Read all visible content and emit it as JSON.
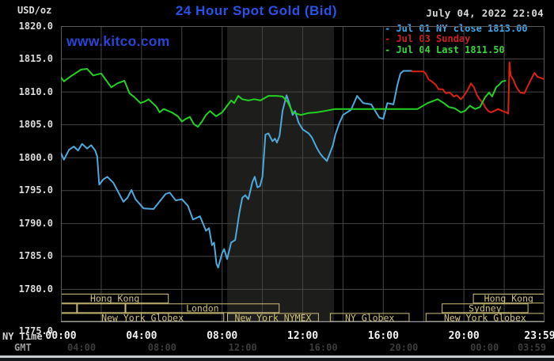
{
  "header": {
    "unit_label": "USD/oz",
    "title": "24 Hour Spot Gold (Bid)",
    "datetime": "July 04, 2022 22:04",
    "watermark": "www.kitco.com"
  },
  "theme": {
    "title_color": "#2a52e8",
    "watermark_color": "#2b44d4",
    "datetime_color": "#d8d8d8",
    "axis_label_color": "#dcdcdc",
    "ny_tick_color": "#f2f2f2",
    "ny_time_label_color": "#d5d5d5",
    "gmt_label_color": "#9c9c9c",
    "gmt_tick_color": "#3c3c3c",
    "grid_color": "#454545",
    "plot_border_color": "#5a5a5a",
    "plot_bottom_line_color": "#999999",
    "band_color": "#1d1d1b",
    "session_color": "#cfc17a",
    "blue": "#4fa8dc",
    "red": "#dc2014",
    "green": "#22d122"
  },
  "legend": [
    {
      "label": "- Jul 01 NY close 1813.00",
      "color": "#41a6e8"
    },
    {
      "label": "- Jul 03 Sunday",
      "color": "#cc2020"
    },
    {
      "label": "- Jul 04 Last 1811.50",
      "color": "#3ad43a"
    }
  ],
  "axes": {
    "y_ticks": [
      "1820.0",
      "1815.0",
      "1810.0",
      "1805.0",
      "1800.0",
      "1795.0",
      "1790.0",
      "1785.0",
      "1780.0",
      "1775.0"
    ],
    "x_ny_label": "NY Time",
    "x_gmt_label": "GMT",
    "x_ny_ticks": [
      "00:00",
      "04:00",
      "08:00",
      "12:00",
      "16:00",
      "20:00",
      "23:59"
    ],
    "x_gmt_ticks": [
      "04:00",
      "08:00",
      "12:00",
      "16:00",
      "20:00",
      "00:00",
      "03:59"
    ]
  },
  "sessions": {
    "rows": [
      [
        {
          "label": "Hong Kong",
          "start": 0,
          "end": 5.35
        },
        {
          "label": "Hong Kong",
          "start": 20.45,
          "end": 24
        }
      ],
      [
        {
          "label": "",
          "start": 0,
          "end": 0.8
        },
        {
          "label": "",
          "start": 0.8,
          "end": 3.2
        },
        {
          "label": "London",
          "start": 3.2,
          "end": 10.85
        },
        {
          "label": "Sydney",
          "start": 18.9,
          "end": 23.2
        }
      ],
      [
        {
          "label": "New York Globex",
          "start": 0,
          "end": 8.1
        },
        {
          "label": "New York NYMEX",
          "start": 8.25,
          "end": 12.8
        },
        {
          "label": "NY Globex",
          "start": 13.35,
          "end": 17.3
        },
        {
          "label": "New York Globex",
          "start": 18.1,
          "end": 24
        }
      ]
    ]
  },
  "chart_data": {
    "type": "line",
    "title": "24 Hour Spot Gold (Bid)",
    "x_unit": "hours, NY Time (00:00 - 23:59)",
    "y_unit": "USD/oz",
    "x_range": [
      0,
      24
    ],
    "y_range": [
      1775,
      1820
    ],
    "y_tick_step": 5,
    "x_tick_step_hours": 2,
    "grid": true,
    "legend_position": "top-right",
    "nymex_band_hours": [
      8.25,
      13.55
    ],
    "series": [
      {
        "name": "Jul 01 NY close 1813.00",
        "color": "#4fa8dc",
        "points": [
          [
            0,
            1800.7
          ],
          [
            0.15,
            1799.7
          ],
          [
            0.4,
            1801.2
          ],
          [
            0.65,
            1801.7
          ],
          [
            0.85,
            1801.1
          ],
          [
            1.05,
            1802.1
          ],
          [
            1.3,
            1801.4
          ],
          [
            1.5,
            1801.9
          ],
          [
            1.7,
            1801.1
          ],
          [
            1.8,
            1800.2
          ],
          [
            1.9,
            1795.9
          ],
          [
            2.1,
            1796.7
          ],
          [
            2.3,
            1797.1
          ],
          [
            2.6,
            1796.2
          ],
          [
            3.1,
            1793.3
          ],
          [
            3.3,
            1793.9
          ],
          [
            3.5,
            1795.1
          ],
          [
            3.7,
            1793.7
          ],
          [
            4.1,
            1792.3
          ],
          [
            4.6,
            1792.2
          ],
          [
            5.2,
            1794.5
          ],
          [
            5.4,
            1794.7
          ],
          [
            5.7,
            1793.5
          ],
          [
            6,
            1793.7
          ],
          [
            6.3,
            1792.7
          ],
          [
            6.55,
            1790.6
          ],
          [
            6.9,
            1791.1
          ],
          [
            7.2,
            1788.9
          ],
          [
            7.35,
            1789.3
          ],
          [
            7.5,
            1786.7
          ],
          [
            7.6,
            1787.1
          ],
          [
            7.72,
            1783.9
          ],
          [
            7.8,
            1783.3
          ],
          [
            8,
            1785.5
          ],
          [
            8.1,
            1786.1
          ],
          [
            8.25,
            1784.6
          ],
          [
            8.45,
            1787.1
          ],
          [
            8.65,
            1787.5
          ],
          [
            8.85,
            1791.5
          ],
          [
            9,
            1793.9
          ],
          [
            9.15,
            1794.3
          ],
          [
            9.3,
            1793.7
          ],
          [
            9.5,
            1796.3
          ],
          [
            9.62,
            1797.1
          ],
          [
            9.75,
            1795.5
          ],
          [
            9.88,
            1795.7
          ],
          [
            10,
            1797.1
          ],
          [
            10.15,
            1803.5
          ],
          [
            10.3,
            1803.7
          ],
          [
            10.5,
            1802.5
          ],
          [
            10.62,
            1802.9
          ],
          [
            10.72,
            1802.3
          ],
          [
            10.85,
            1803.3
          ],
          [
            11,
            1807.1
          ],
          [
            11.2,
            1809.5
          ],
          [
            11.35,
            1808.1
          ],
          [
            11.5,
            1806.5
          ],
          [
            11.62,
            1807.1
          ],
          [
            11.8,
            1805.3
          ],
          [
            12,
            1804.3
          ],
          [
            12.3,
            1803.7
          ],
          [
            12.45,
            1803.1
          ],
          [
            12.7,
            1801.5
          ],
          [
            12.85,
            1800.7
          ],
          [
            13,
            1800.1
          ],
          [
            13.2,
            1799.5
          ],
          [
            13.5,
            1801.9
          ],
          [
            13.62,
            1803.5
          ],
          [
            13.8,
            1805.1
          ],
          [
            14,
            1806.5
          ],
          [
            14.4,
            1807.3
          ],
          [
            14.7,
            1809.4
          ],
          [
            15,
            1808.3
          ],
          [
            15.4,
            1808.1
          ],
          [
            15.8,
            1806.1
          ],
          [
            16,
            1805.9
          ],
          [
            16.2,
            1808.3
          ],
          [
            16.5,
            1808.1
          ],
          [
            16.7,
            1811.1
          ],
          [
            16.85,
            1812.8
          ],
          [
            17,
            1813.2
          ],
          [
            17.4,
            1813.2
          ]
        ]
      },
      {
        "name": "Jul 03 Sunday",
        "color": "#dc2014",
        "points": [
          [
            17.4,
            1813.1
          ],
          [
            18,
            1813.1
          ],
          [
            18.1,
            1812.8
          ],
          [
            18.25,
            1811.9
          ],
          [
            18.4,
            1811.6
          ],
          [
            18.6,
            1811.1
          ],
          [
            18.75,
            1810.4
          ],
          [
            18.95,
            1810.4
          ],
          [
            19.1,
            1809.8
          ],
          [
            19.3,
            1809.9
          ],
          [
            19.5,
            1809.3
          ],
          [
            19.65,
            1809.5
          ],
          [
            19.85,
            1808.9
          ],
          [
            19.95,
            1809.2
          ],
          [
            20.15,
            1810.1
          ],
          [
            20.35,
            1811.3
          ],
          [
            20.5,
            1810.7
          ],
          [
            20.65,
            1809.5
          ],
          [
            20.78,
            1808.9
          ],
          [
            20.95,
            1808.3
          ],
          [
            21.05,
            1807.7
          ],
          [
            21.2,
            1807.1
          ],
          [
            21.35,
            1806.9
          ],
          [
            21.5,
            1807.1
          ],
          [
            21.7,
            1807.4
          ],
          [
            21.9,
            1807.1
          ],
          [
            22.1,
            1806.9
          ],
          [
            22.2,
            1806.7
          ],
          [
            22.26,
            1814.5
          ],
          [
            22.32,
            1812.5
          ],
          [
            22.45,
            1811.9
          ],
          [
            22.55,
            1811.1
          ],
          [
            22.65,
            1810.5
          ],
          [
            22.8,
            1809.9
          ],
          [
            23,
            1809.8
          ],
          [
            23.2,
            1811.1
          ],
          [
            23.4,
            1812.3
          ],
          [
            23.5,
            1812.9
          ],
          [
            23.65,
            1812.3
          ],
          [
            23.85,
            1812.1
          ],
          [
            24,
            1811.9
          ]
        ]
      },
      {
        "name": "Jul 04 Last 1811.50",
        "color": "#22d122",
        "points": [
          [
            0,
            1812.2
          ],
          [
            0.15,
            1811.6
          ],
          [
            0.5,
            1812.4
          ],
          [
            1,
            1813.4
          ],
          [
            1.3,
            1813.5
          ],
          [
            1.6,
            1812.5
          ],
          [
            2,
            1812.8
          ],
          [
            2.5,
            1810.7
          ],
          [
            2.8,
            1811.3
          ],
          [
            3.15,
            1811.7
          ],
          [
            3.4,
            1809.8
          ],
          [
            3.65,
            1809.2
          ],
          [
            3.95,
            1808.3
          ],
          [
            4.2,
            1808.6
          ],
          [
            4.35,
            1808.9
          ],
          [
            4.55,
            1808.3
          ],
          [
            4.75,
            1807.7
          ],
          [
            4.9,
            1806.9
          ],
          [
            5.1,
            1807.4
          ],
          [
            5.5,
            1806.9
          ],
          [
            5.8,
            1806.3
          ],
          [
            6,
            1805.5
          ],
          [
            6.2,
            1805.9
          ],
          [
            6.4,
            1806.2
          ],
          [
            6.6,
            1805.1
          ],
          [
            6.8,
            1804.7
          ],
          [
            7,
            1805.5
          ],
          [
            7.2,
            1806.5
          ],
          [
            7.4,
            1807.1
          ],
          [
            7.7,
            1806.3
          ],
          [
            8,
            1806.9
          ],
          [
            8.25,
            1807.9
          ],
          [
            8.45,
            1808.7
          ],
          [
            8.6,
            1808.3
          ],
          [
            8.8,
            1809.4
          ],
          [
            9,
            1808.9
          ],
          [
            9.3,
            1808.7
          ],
          [
            9.6,
            1808.9
          ],
          [
            9.9,
            1808.7
          ],
          [
            10.3,
            1809.4
          ],
          [
            10.7,
            1809.4
          ],
          [
            11,
            1809.3
          ],
          [
            11.25,
            1808.5
          ],
          [
            11.5,
            1806.9
          ],
          [
            11.9,
            1806.5
          ],
          [
            12.3,
            1806.8
          ],
          [
            12.7,
            1806.9
          ],
          [
            13.1,
            1807.1
          ],
          [
            13.6,
            1807.4
          ],
          [
            17.7,
            1807.4
          ],
          [
            18.2,
            1808.3
          ],
          [
            18.7,
            1808.9
          ],
          [
            19,
            1808.3
          ],
          [
            19.25,
            1807.7
          ],
          [
            19.55,
            1807.5
          ],
          [
            19.85,
            1806.9
          ],
          [
            20.05,
            1807.1
          ],
          [
            20.3,
            1807.9
          ],
          [
            20.55,
            1807.4
          ],
          [
            20.8,
            1807.7
          ],
          [
            21.05,
            1809.2
          ],
          [
            21.25,
            1809.9
          ],
          [
            21.4,
            1809.3
          ],
          [
            21.6,
            1810.7
          ],
          [
            21.75,
            1811.1
          ],
          [
            21.9,
            1811.6
          ],
          [
            22.05,
            1811.7
          ]
        ]
      }
    ]
  }
}
